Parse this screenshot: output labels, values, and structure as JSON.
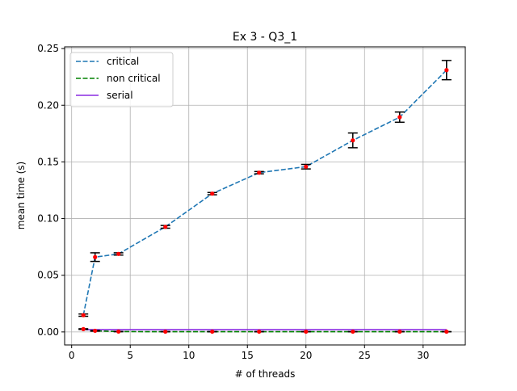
{
  "chart_data": {
    "type": "line",
    "title": "Ex 3 - Q3_1",
    "xlabel": "# of threads",
    "ylabel": "mean time (s)",
    "xlim": [
      -0.6,
      33.6
    ],
    "ylim": [
      -0.0115,
      0.2515
    ],
    "xticks": [
      0,
      5,
      10,
      15,
      20,
      25,
      30
    ],
    "yticks": [
      0.0,
      0.05,
      0.1,
      0.15,
      0.2,
      0.25
    ],
    "xtick_labels": [
      "0",
      "5",
      "10",
      "15",
      "20",
      "25",
      "30"
    ],
    "ytick_labels": [
      "0.00",
      "0.05",
      "0.10",
      "0.15",
      "0.20",
      "0.25"
    ],
    "grid": true,
    "legend_position": "top-left",
    "series": [
      {
        "name": "critical",
        "style": "dashed",
        "color": "#1f77b4",
        "x": [
          1,
          2,
          4,
          8,
          12,
          16,
          20,
          24,
          28,
          32
        ],
        "y": [
          0.0148,
          0.066,
          0.0688,
          0.0927,
          0.122,
          0.1405,
          0.1458,
          0.169,
          0.1895,
          0.231
        ],
        "err": [
          0.001,
          0.0038,
          0.001,
          0.0012,
          0.001,
          0.001,
          0.002,
          0.0065,
          0.0045,
          0.0085
        ]
      },
      {
        "name": "non critical",
        "style": "dashed",
        "color": "#008000",
        "x": [
          1,
          2,
          4,
          8,
          12,
          16,
          20,
          24,
          28,
          32
        ],
        "y": [
          0.0025,
          0.001,
          0.0003,
          0.0002,
          0.0002,
          0.0002,
          0.0002,
          0.0002,
          0.0002,
          0.0002
        ],
        "err": [
          0.0003,
          0.0003,
          0.0001,
          0.0001,
          0.0001,
          0.0001,
          0.0001,
          0.0001,
          0.0001,
          0.0001
        ]
      },
      {
        "name": "serial",
        "style": "solid",
        "color": "#8a2be2",
        "x": [
          1,
          32
        ],
        "y": [
          0.002,
          0.002
        ]
      }
    ],
    "marker_color": "#ff0000",
    "errorbar_color": "#000000"
  }
}
